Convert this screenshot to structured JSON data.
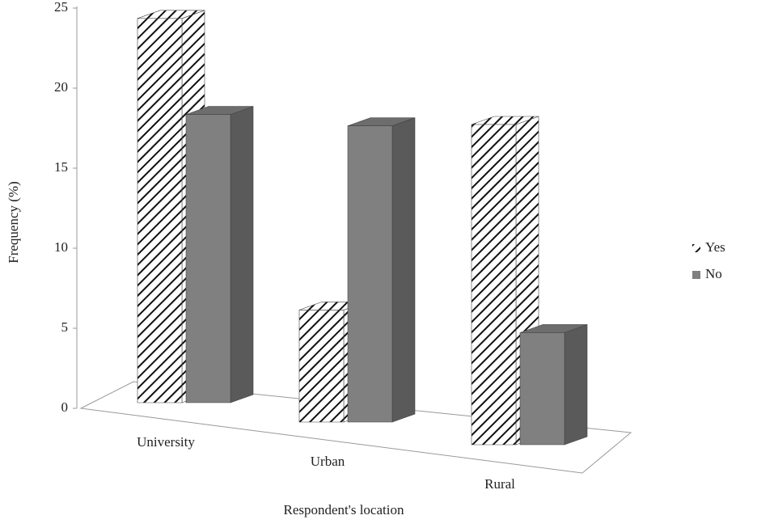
{
  "chart_data": {
    "type": "bar3d",
    "x_label": "Respondent's location",
    "y_label": "Frequency (%)",
    "categories": [
      "University",
      "Urban",
      "Rural"
    ],
    "series": [
      {
        "name": "Yes",
        "color": "#000000",
        "values": [
          24,
          7,
          20
        ]
      },
      {
        "name": "No",
        "color": "#808080",
        "values": [
          18,
          18.5,
          7
        ]
      }
    ],
    "ylim": [
      0,
      25
    ],
    "yticks": [
      0,
      5,
      10,
      15,
      20,
      25
    ],
    "legend": "right"
  }
}
